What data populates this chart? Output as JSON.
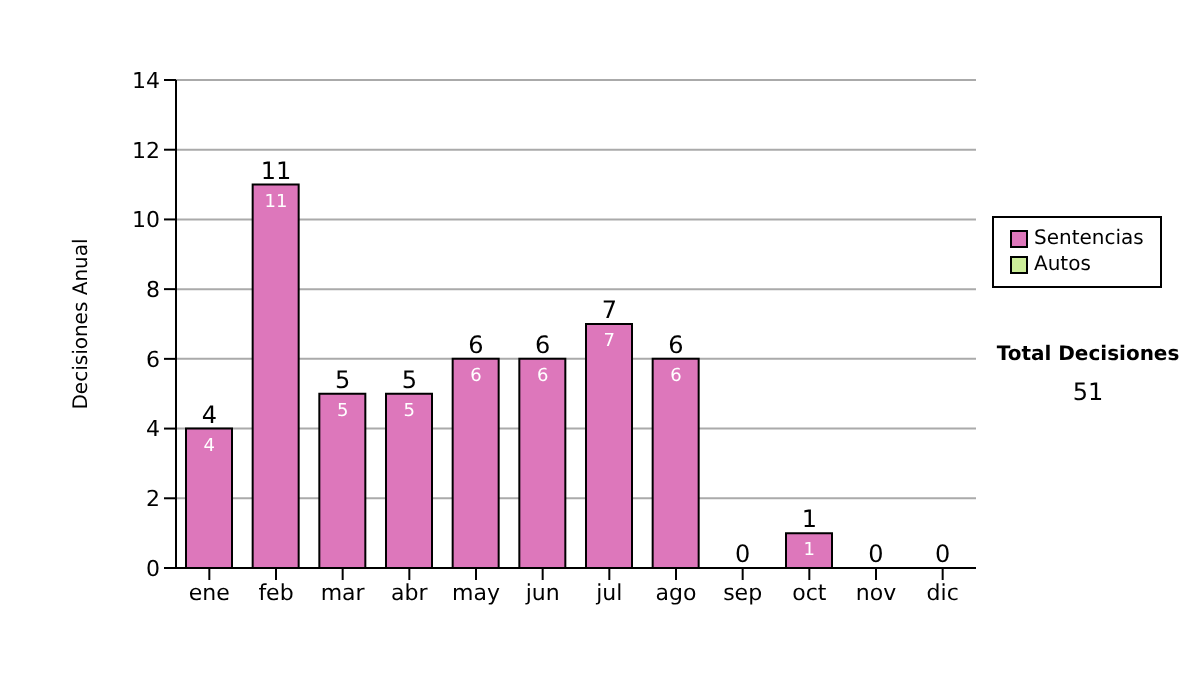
{
  "chart_data": {
    "type": "bar",
    "ylabel": "Decisiones Anual",
    "categories": [
      "ene",
      "feb",
      "mar",
      "abr",
      "may",
      "jun",
      "jul",
      "ago",
      "sep",
      "oct",
      "nov",
      "dic"
    ],
    "stacked": true,
    "series": [
      {
        "name": "Sentencias",
        "color": "#dd77bb",
        "values": [
          4,
          11,
          5,
          5,
          6,
          6,
          7,
          6,
          0,
          1,
          0,
          0
        ],
        "value_labels": [
          "4",
          "11",
          "5",
          "5",
          "6",
          "6",
          "7",
          "6",
          null,
          "1",
          null,
          null
        ]
      },
      {
        "name": "Autos",
        "color": "#ccee99",
        "values": [
          0,
          0,
          0,
          0,
          0,
          0,
          0,
          0,
          0,
          0,
          0,
          0
        ]
      }
    ],
    "totals": [
      "4",
      "11",
      "5",
      "5",
      "6",
      "6",
      "7",
      "6",
      "0",
      "1",
      "0",
      "0"
    ],
    "ylim": [
      0,
      14
    ],
    "yticks": [
      0,
      2,
      4,
      6,
      8,
      10,
      12,
      14
    ],
    "grid": "y",
    "legend": "right",
    "annotations": [
      "Total Decisiones",
      "51"
    ]
  }
}
